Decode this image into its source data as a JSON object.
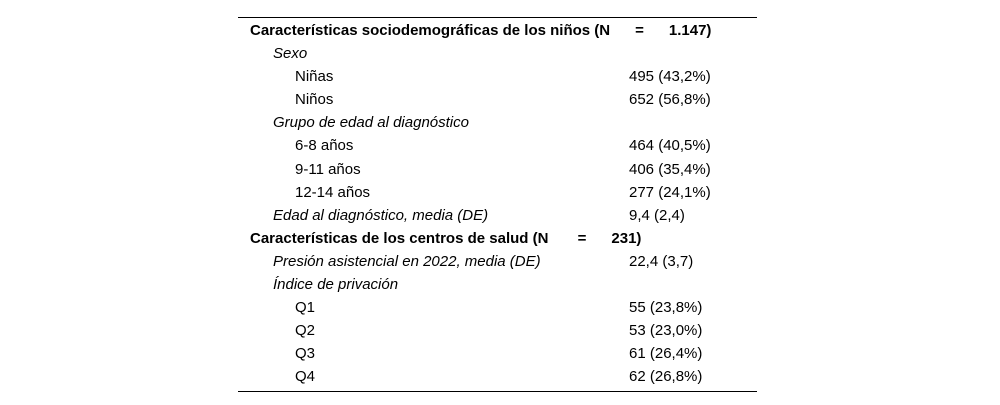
{
  "table": {
    "rows": [
      {
        "style": "header",
        "label": "Características sociodemográficas de los niños (N      =      1.147)",
        "value": ""
      },
      {
        "style": "group",
        "label": "Sexo",
        "value": ""
      },
      {
        "style": "item",
        "label": "Niñas",
        "value": "495 (43,2%)"
      },
      {
        "style": "item",
        "label": "Niños",
        "value": "652 (56,8%)"
      },
      {
        "style": "group",
        "label": "Grupo de edad al diagnóstico",
        "value": ""
      },
      {
        "style": "item",
        "label": "6-8 años",
        "value": "464 (40,5%)"
      },
      {
        "style": "item",
        "label": "9-11 años",
        "value": "406 (35,4%)"
      },
      {
        "style": "item",
        "label": "12-14 años",
        "value": "277 (24,1%)"
      },
      {
        "style": "stat",
        "label": "Edad al diagnóstico, media (DE)",
        "value": "9,4 (2,4)"
      },
      {
        "style": "header",
        "label": "Características de los centros de salud (N       =      231)",
        "value": ""
      },
      {
        "style": "stat",
        "label": "Presión asistencial en 2022, media (DE)",
        "value": "22,4 (3,7)"
      },
      {
        "style": "group",
        "label": "Índice de privación",
        "value": ""
      },
      {
        "style": "item",
        "label": "Q1",
        "value": "55 (23,8%)"
      },
      {
        "style": "item",
        "label": "Q2",
        "value": "53 (23,0%)"
      },
      {
        "style": "item",
        "label": "Q3",
        "value": "61 (26,4%)"
      },
      {
        "style": "item",
        "label": "Q4",
        "value": "62 (26,8%)"
      }
    ],
    "colors": {
      "text": "#000000",
      "background": "#ffffff",
      "rule": "#000000"
    }
  }
}
